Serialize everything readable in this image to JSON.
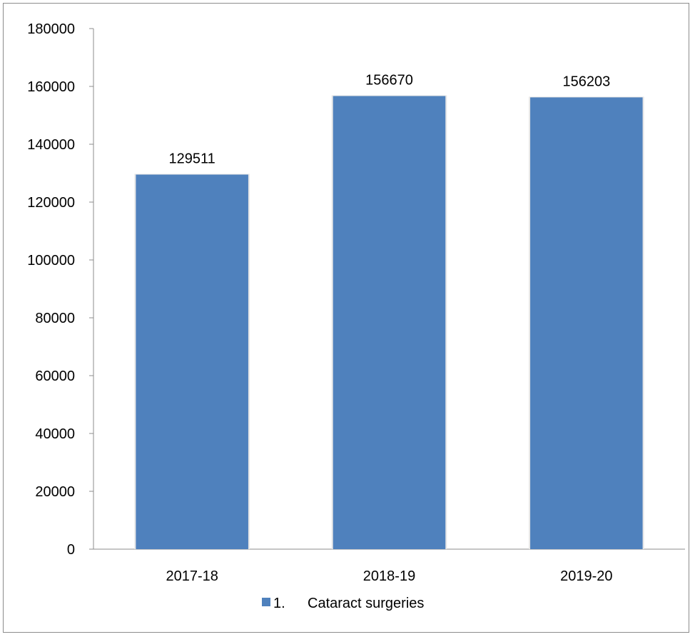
{
  "chart_data": {
    "type": "bar",
    "categories": [
      "2017-18",
      "2018-19",
      "2019-20"
    ],
    "series": [
      {
        "name": "1.      Cataract surgeries",
        "values": [
          129511,
          156670,
          156203
        ],
        "color": "#4f81bd"
      }
    ],
    "title": "",
    "xlabel": "",
    "ylabel": "",
    "ylim": [
      0,
      180000
    ],
    "yticks": [
      0,
      20000,
      40000,
      60000,
      80000,
      100000,
      120000,
      140000,
      160000,
      180000
    ],
    "grid": false,
    "legend_position": "bottom"
  },
  "legend": {
    "marker": "1.",
    "label": "Cataract surgeries"
  }
}
